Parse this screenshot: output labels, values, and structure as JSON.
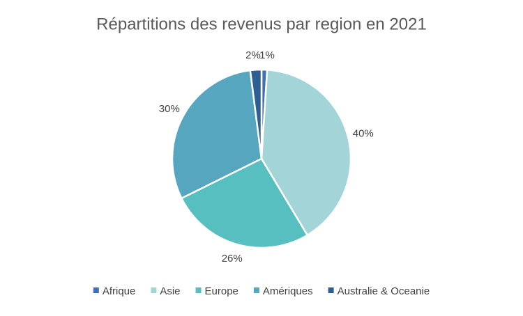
{
  "chart_data": {
    "type": "pie",
    "title": "Répartitions des revenus par region en 2021",
    "categories": [
      "Afrique",
      "Asie",
      "Europe",
      "Amériques",
      "Australie & Oceanie"
    ],
    "values": [
      1,
      40,
      26,
      30,
      2
    ],
    "value_labels": [
      "1%",
      "40%",
      "26%",
      "30%",
      "2%"
    ],
    "colors": [
      "#3f6fb6",
      "#a3d5d8",
      "#57bfbf",
      "#56a6c0",
      "#2e5f93"
    ],
    "legend": "bottom"
  }
}
